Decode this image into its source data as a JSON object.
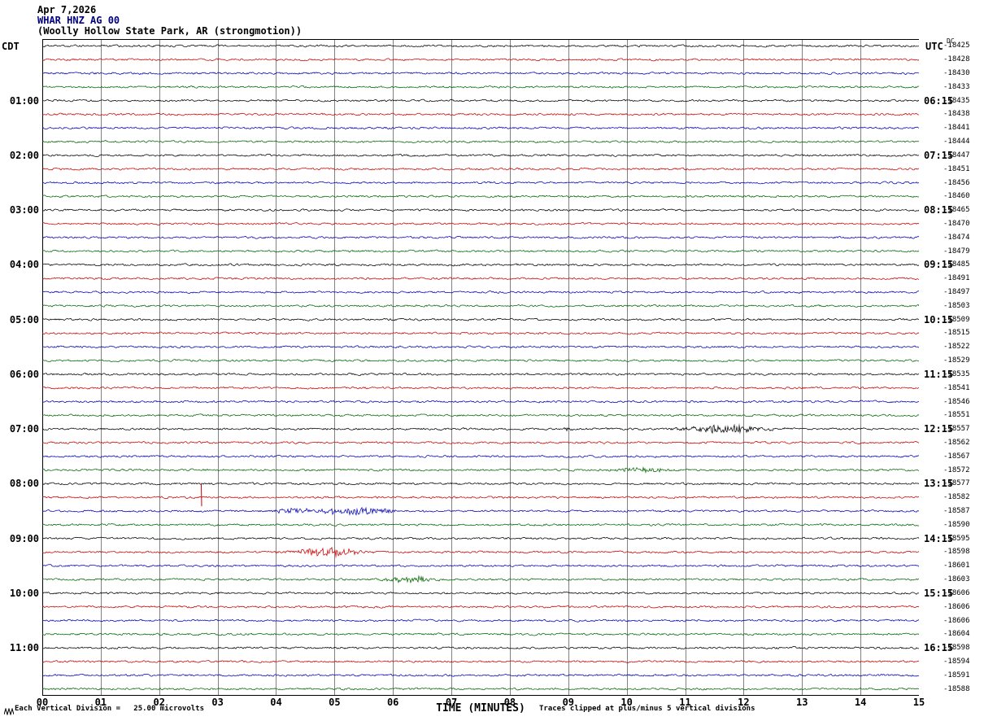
{
  "header": {
    "date": "Apr 7,2026",
    "station": "WHAR HNZ AG 00",
    "location": "(Woolly Hollow State Park, AR (strongmotion))"
  },
  "axis": {
    "left_tz": "CDT",
    "right_tz": "UTC",
    "dc_header": "DC",
    "x_title": "TIME (MINUTES)",
    "x_ticks": [
      "00",
      "01",
      "02",
      "03",
      "04",
      "05",
      "06",
      "07",
      "08",
      "09",
      "10",
      "11",
      "12",
      "13",
      "14",
      "15"
    ]
  },
  "footer": {
    "scale_note": "Each Vertical Division =   25.00 microvolts",
    "clip_note": "Traces clipped at plus/minus 5 vertical divisions"
  },
  "icons": {
    "scale_marker": "zigzag-icon"
  },
  "chart_data": {
    "type": "line",
    "subtype": "seismogram-helicorder",
    "title": "WHAR HNZ AG 00 (Woolly Hollow State Park, AR (strongmotion)) Apr 7,2026",
    "xlabel": "TIME (MINUTES)",
    "x_range_minutes": [
      0,
      15
    ],
    "grid": "vertical-minute-lines",
    "rows": 48,
    "row_duration_minutes": 15,
    "first_row_start_cdt": "00:00",
    "trace_color_cycle": [
      "#000000",
      "#cc0000",
      "#0000bb",
      "#006600"
    ],
    "hour_label_every_rows": 4,
    "first_hour_label_row": 4,
    "left_hour_labels_cdt": [
      "01:00",
      "02:00",
      "03:00",
      "04:00",
      "05:00",
      "06:00",
      "07:00",
      "08:00",
      "09:00",
      "10:00",
      "11:00"
    ],
    "right_hour_labels_utc": [
      "06:15",
      "07:15",
      "08:15",
      "09:15",
      "10:15",
      "11:15",
      "12:15",
      "13:15",
      "14:15",
      "15:15",
      "16:15"
    ],
    "dc_offsets": [
      -18425,
      -18428,
      -18430,
      -18433,
      -18435,
      -18438,
      -18441,
      -18444,
      -18447,
      -18451,
      -18456,
      -18460,
      -18465,
      -18470,
      -18474,
      -18479,
      -18485,
      -18491,
      -18497,
      -18503,
      -18509,
      -18515,
      -18522,
      -18529,
      -18535,
      -18541,
      -18546,
      -18551,
      -18557,
      -18562,
      -18567,
      -18572,
      -18577,
      -18582,
      -18587,
      -18590,
      -18595,
      -18598,
      -18601,
      -18603,
      -18606,
      -18606,
      -18606,
      -18604,
      -18598,
      -18594,
      -18591,
      -18588
    ],
    "microvolts_per_division": 25.0,
    "clip_divisions": 5,
    "background_noise_divisions": 0.15,
    "events": [
      {
        "row": 28,
        "row_start_cdt": "07:00",
        "center_min": 11.7,
        "width_min": 0.5,
        "amplitude_div": 0.55
      },
      {
        "row": 28,
        "row_start_cdt": "07:00",
        "center_min": 9.0,
        "width_min": 0.06,
        "amplitude_div": 0.25
      },
      {
        "row": 31,
        "row_start_cdt": "07:45",
        "center_min": 10.25,
        "width_min": 0.3,
        "amplitude_div": 0.35
      },
      {
        "row": 33,
        "row_start_cdt": "08:15",
        "center_min": 2.72,
        "width_min": 0.05,
        "amplitude_div": 2.0,
        "shape": "spike"
      },
      {
        "row": 34,
        "row_start_cdt": "08:30",
        "center_min": 4.25,
        "width_min": 0.18,
        "amplitude_div": 0.4
      },
      {
        "row": 34,
        "row_start_cdt": "08:30",
        "center_min": 5.35,
        "width_min": 0.5,
        "amplitude_div": 0.5
      },
      {
        "row": 37,
        "row_start_cdt": "09:15",
        "center_min": 4.85,
        "width_min": 0.4,
        "amplitude_div": 0.6
      },
      {
        "row": 39,
        "row_start_cdt": "09:45",
        "center_min": 6.3,
        "width_min": 0.28,
        "amplitude_div": 0.45
      }
    ]
  }
}
